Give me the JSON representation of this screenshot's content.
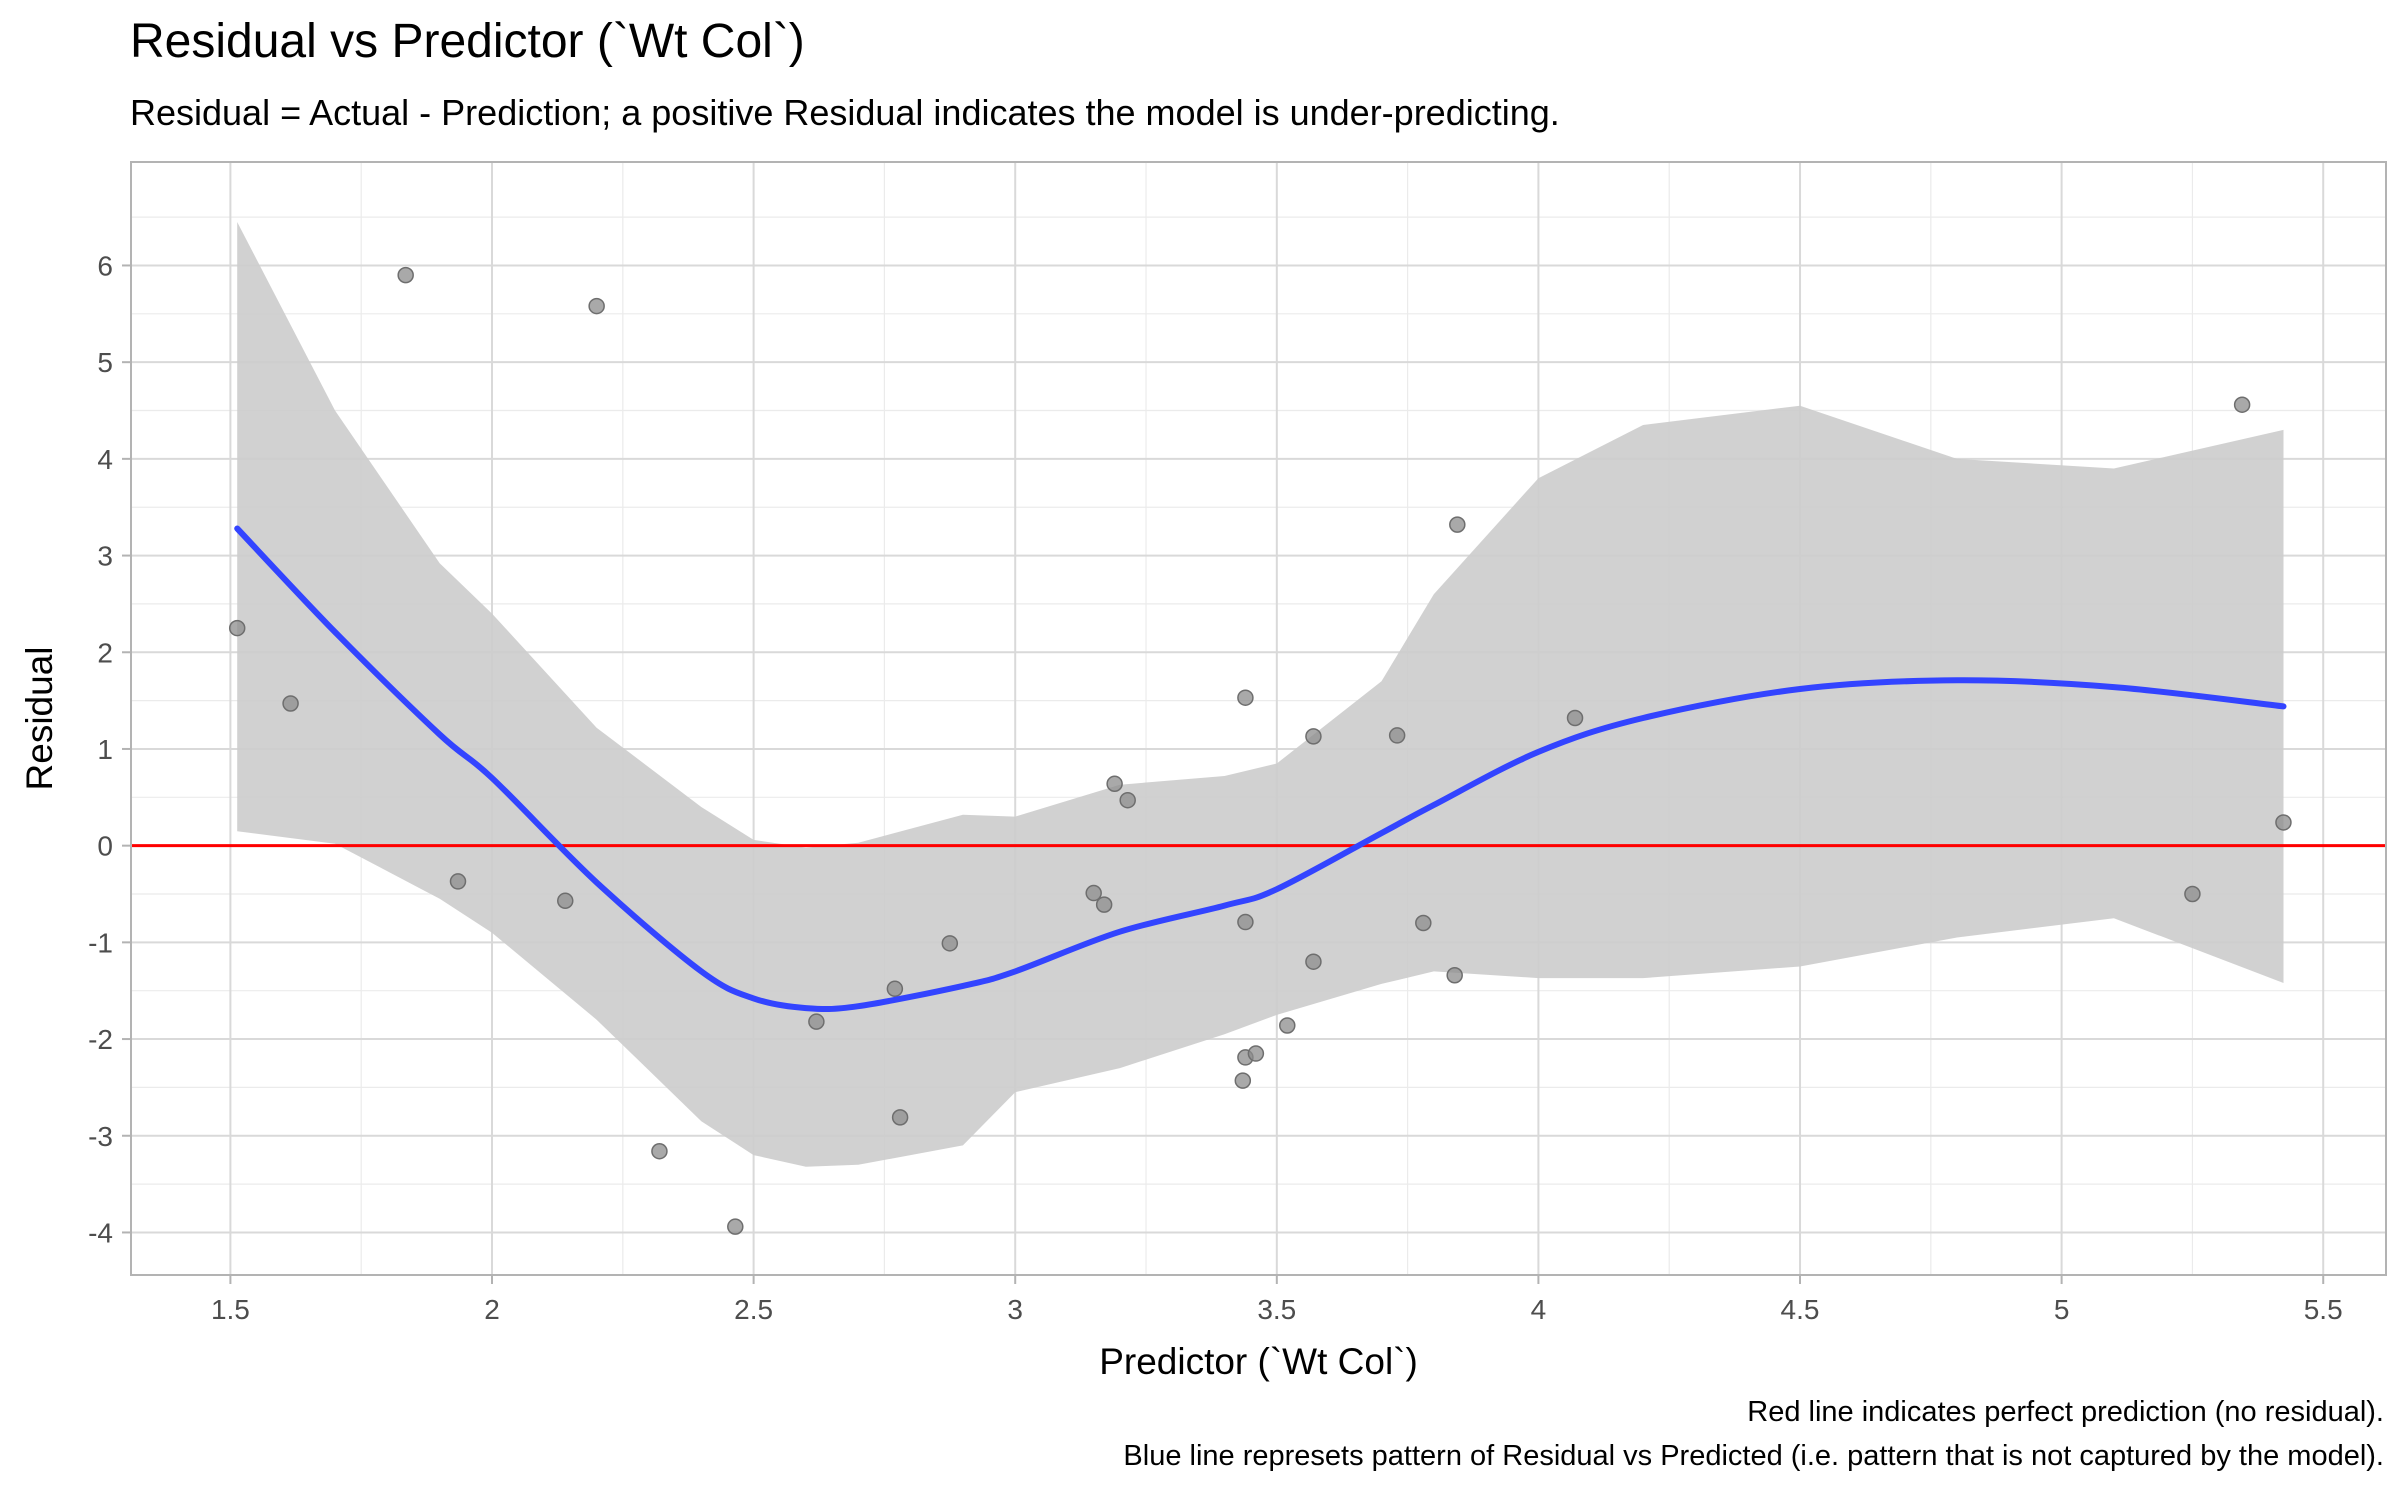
{
  "chart_data": {
    "type": "scatter",
    "title": "Residual vs Predictor (`Wt Col`)",
    "subtitle": "Residual = Actual - Prediction; a positive Residual indicates the model is under-predicting.",
    "xlabel": "Predictor (`Wt Col`)",
    "ylabel": "Residual",
    "caption_lines": [
      "Red line indicates perfect prediction (no residual).",
      "Blue line represets pattern of Residual vs Predicted (i.e. pattern that is not captured by the model)."
    ],
    "xlim": [
      1.31,
      5.62
    ],
    "ylim": [
      -4.44,
      7.07
    ],
    "x_ticks": [
      1.5,
      2,
      2.5,
      3,
      3.5,
      4,
      4.5,
      5,
      5.5
    ],
    "x_tick_labels": [
      "1.5",
      "2",
      "2.5",
      "3",
      "3.5",
      "4",
      "4.5",
      "5",
      "5.5"
    ],
    "y_ticks": [
      -4,
      -3,
      -2,
      -1,
      0,
      1,
      2,
      3,
      4,
      5,
      6
    ],
    "y_tick_labels": [
      "-4",
      "-3",
      "-2",
      "-1",
      "0",
      "1",
      "2",
      "3",
      "4",
      "5",
      "6"
    ],
    "grid": true,
    "points": [
      {
        "x": 1.513,
        "y": 2.25
      },
      {
        "x": 1.615,
        "y": 1.47
      },
      {
        "x": 1.835,
        "y": 5.9
      },
      {
        "x": 1.935,
        "y": -0.37
      },
      {
        "x": 2.14,
        "y": -0.57
      },
      {
        "x": 2.2,
        "y": 5.58
      },
      {
        "x": 2.32,
        "y": -3.16
      },
      {
        "x": 2.465,
        "y": -3.94
      },
      {
        "x": 2.62,
        "y": -1.82
      },
      {
        "x": 2.77,
        "y": -1.48
      },
      {
        "x": 2.78,
        "y": -2.81
      },
      {
        "x": 2.875,
        "y": -1.01
      },
      {
        "x": 3.15,
        "y": -0.49
      },
      {
        "x": 3.17,
        "y": -0.61
      },
      {
        "x": 3.19,
        "y": 0.64
      },
      {
        "x": 3.215,
        "y": 0.47
      },
      {
        "x": 3.435,
        "y": -2.43
      },
      {
        "x": 3.44,
        "y": -2.19
      },
      {
        "x": 3.44,
        "y": 1.53
      },
      {
        "x": 3.44,
        "y": -0.79
      },
      {
        "x": 3.46,
        "y": -2.15
      },
      {
        "x": 3.52,
        "y": -1.86
      },
      {
        "x": 3.57,
        "y": 1.13
      },
      {
        "x": 3.57,
        "y": -1.2
      },
      {
        "x": 3.73,
        "y": 1.14
      },
      {
        "x": 3.78,
        "y": -0.8
      },
      {
        "x": 3.84,
        "y": -1.34
      },
      {
        "x": 3.845,
        "y": 3.32
      },
      {
        "x": 4.07,
        "y": 1.32
      },
      {
        "x": 5.25,
        "y": -0.5
      },
      {
        "x": 5.345,
        "y": 4.56
      },
      {
        "x": 5.424,
        "y": 0.24
      }
    ],
    "reference_line": {
      "y": 0,
      "color": "#ff0000"
    },
    "smooth_line": {
      "color": "#3344ff",
      "x": [
        1.513,
        1.7,
        1.9,
        2.0,
        2.2,
        2.4,
        2.5,
        2.6,
        2.7,
        2.9,
        3.0,
        3.2,
        3.4,
        3.5,
        3.7,
        3.8,
        4.0,
        4.2,
        4.5,
        4.8,
        5.1,
        5.424
      ],
      "y": [
        3.28,
        2.21,
        1.15,
        0.7,
        -0.38,
        -1.3,
        -1.58,
        -1.68,
        -1.66,
        -1.45,
        -1.3,
        -0.89,
        -0.62,
        -0.45,
        0.13,
        0.42,
        0.97,
        1.32,
        1.62,
        1.71,
        1.64,
        1.44
      ]
    },
    "confidence_band": {
      "fill": "#cccccc",
      "x": [
        1.513,
        1.7,
        1.9,
        2.0,
        2.2,
        2.4,
        2.5,
        2.6,
        2.7,
        2.9,
        3.0,
        3.2,
        3.4,
        3.5,
        3.7,
        3.8,
        4.0,
        4.2,
        4.5,
        4.8,
        5.1,
        5.424
      ],
      "upper": [
        6.45,
        4.5,
        2.92,
        2.4,
        1.22,
        0.4,
        0.06,
        -0.02,
        0.03,
        0.32,
        0.3,
        0.63,
        0.72,
        0.85,
        1.7,
        2.6,
        3.8,
        4.35,
        4.55,
        4.0,
        3.9,
        4.3
      ],
      "lower": [
        0.15,
        0.02,
        -0.55,
        -0.9,
        -1.8,
        -2.85,
        -3.2,
        -3.32,
        -3.3,
        -3.1,
        -2.55,
        -2.3,
        -1.95,
        -1.75,
        -1.43,
        -1.3,
        -1.37,
        -1.37,
        -1.25,
        -0.95,
        -0.75,
        -1.42
      ]
    }
  }
}
